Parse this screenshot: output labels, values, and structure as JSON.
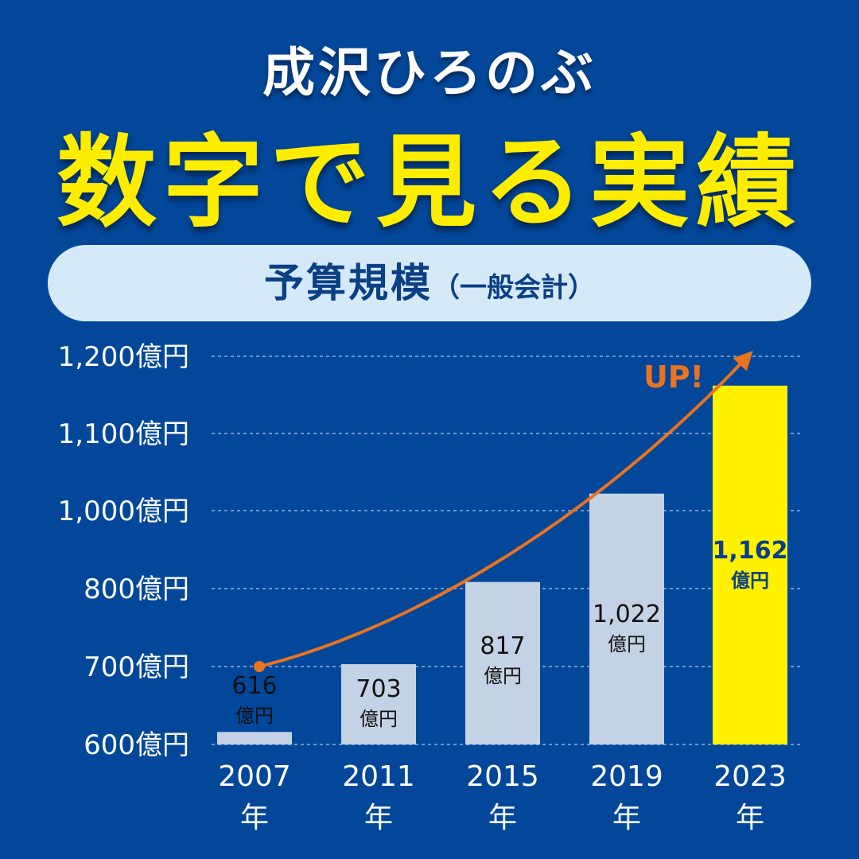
{
  "header": {
    "name": "成沢ひろのぶ",
    "headline": "数字で見る実績",
    "subtitle_main": "予算規模",
    "subtitle_sub": "（一般会計）"
  },
  "colors": {
    "background": "#02479a",
    "bar_default": "#c3d3e5",
    "bar_highlight": "#fff100",
    "arrow": "#e9731e",
    "label_dark": "#111111",
    "label_highlight": "#0b3f86"
  },
  "chart_data": {
    "type": "bar",
    "categories": [
      "2007",
      "2011",
      "2015",
      "2019",
      "2023"
    ],
    "category_unit": "年",
    "values": [
      616,
      703,
      817,
      1022,
      1162
    ],
    "value_labels": [
      "616",
      "703",
      "817",
      "1,022",
      "1,162"
    ],
    "value_unit": "億円",
    "y_ticks": [
      600,
      700,
      800,
      1000,
      1100,
      1200
    ],
    "y_tick_labels": [
      "600億円",
      "700億円",
      "800億円",
      "1,000億円",
      "1,100億円",
      "1,200億円"
    ],
    "highlight_index": 4,
    "annotation": "UP!",
    "grid": true
  }
}
